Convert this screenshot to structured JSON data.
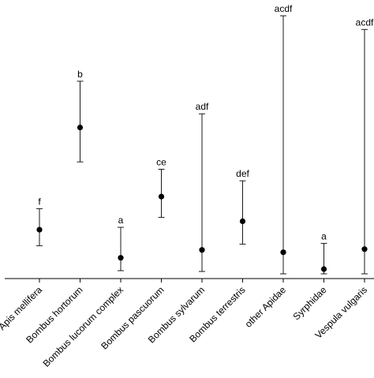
{
  "chart_data": {
    "type": "scatter",
    "title": "",
    "xlabel": "",
    "ylabel": "",
    "categories": [
      "Apis mellifera",
      "Bombus hortorum",
      "Bombus lucorum complex",
      "Bombus pascuorum",
      "Bombus sylvarum",
      "Bombus terrestris",
      "other Apidae",
      "Syrphidae",
      "Vespula vulgaris"
    ],
    "ylim": [
      0,
      100
    ],
    "points": [
      {
        "category": "Apis mellifera",
        "value": 18.6,
        "lower": 12.5,
        "upper": 26.6,
        "group_label": "f"
      },
      {
        "category": "Bombus hortorum",
        "value": 57.5,
        "lower": 44.4,
        "upper": 75.1,
        "group_label": "b"
      },
      {
        "category": "Bombus lucorum complex",
        "value": 7.9,
        "lower": 3.0,
        "upper": 19.5,
        "group_label": "a"
      },
      {
        "category": "Bombus pascuorum",
        "value": 31.2,
        "lower": 23.3,
        "upper": 41.6,
        "group_label": "ce"
      },
      {
        "category": "Bombus sylvarum",
        "value": 10.9,
        "lower": 2.7,
        "upper": 62.7,
        "group_label": "adf"
      },
      {
        "category": "Bombus terrestris",
        "value": 21.8,
        "lower": 13.1,
        "upper": 37.2,
        "group_label": "def"
      },
      {
        "category": "other Apidae",
        "value": 10.0,
        "lower": 1.8,
        "upper": 100.0,
        "group_label": "acdf"
      },
      {
        "category": "Syrphidae",
        "value": 3.6,
        "lower": 1.8,
        "upper": 13.4,
        "group_label": "a"
      },
      {
        "category": "Vespula vulgaris",
        "value": 11.2,
        "lower": 1.8,
        "upper": 94.8,
        "group_label": "acdf"
      }
    ],
    "grid": false,
    "legend": "none"
  }
}
